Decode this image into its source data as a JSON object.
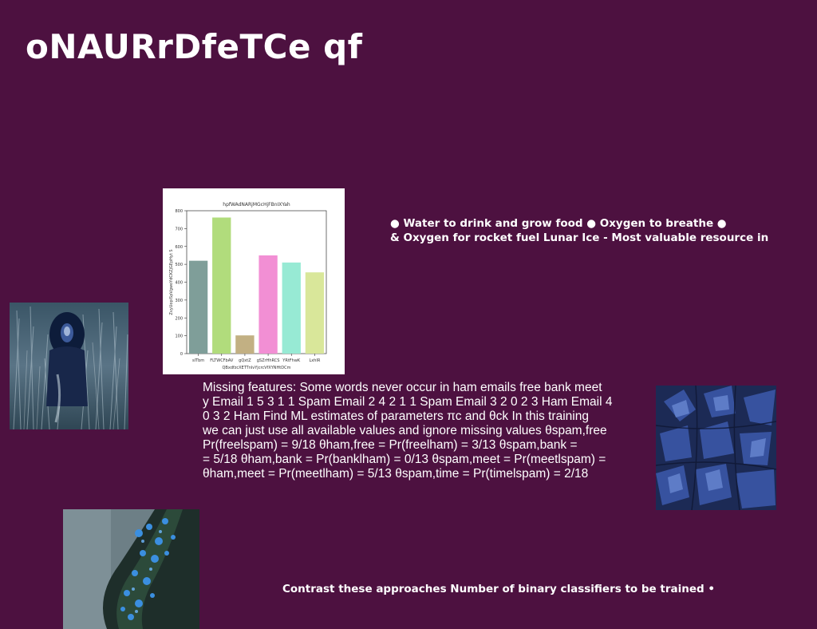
{
  "slide": {
    "title": "oNAURrDfeTCe qf",
    "bullets": [
      "● Water to drink and grow food ● Oxygen to breathe ●",
      "& Oxygen for rocket fuel Lunar Ice - Most valuable resource in"
    ],
    "body_lines": [
      "Missing features: Some words never occur in ham emails free bank meet",
      "y Email 1 5 3 1 1 Spam Email 2 4 2 1 1 Spam Email 3 2 0 2 3 Ham Email 4",
      "0 3 2 Ham Find ML estimates of parameters πc and θck In this training",
      "we can just use all available values and ignore missing values θspam,free",
      "Pr(freelspam) = 9/18 θham,free = Pr(freelham) = 3/13 θspam,bank =",
      "= 5/18 θham,bank = Pr(banklham) = 0/13 θspam,meet = Pr(meetlspam) =",
      "θham,meet = Pr(meetlham) = 5/13 θspam,time = Pr(timelspam) = 2/18"
    ],
    "footer": "Contrast these approaches Number of binary classifiers to be trained •"
  },
  "images": {
    "grass_photo": "dark-grass-figure-photo",
    "leaves_photo": "blue-leaves-photo",
    "tree_photo": "tree-bark-blue-lichen-photo"
  },
  "chart_data": {
    "type": "bar",
    "title": "hpfWAdNARjMGcHjFBnIXYah",
    "xlabel": "QBxdfzcXETTnlvYjcrcVfXYNHtDCm",
    "ylabel": "ZvyUopiSpVgwoYdCKZjGEpHyt S",
    "categories": [
      "sITbm",
      "FLTWCFbAV",
      "gQxtZ",
      "gSZrHhRCS",
      "YRtFhwK",
      "LxhIR"
    ],
    "values": [
      520,
      762,
      102,
      550,
      510,
      455
    ],
    "colors": [
      "#7f9e99",
      "#b1dc7c",
      "#c2b083",
      "#f28fd4",
      "#97ead4",
      "#d9e79a"
    ],
    "ylim": [
      0,
      800
    ],
    "yticks": [
      0,
      100,
      200,
      300,
      400,
      500,
      600,
      700,
      800
    ],
    "grid": false
  }
}
